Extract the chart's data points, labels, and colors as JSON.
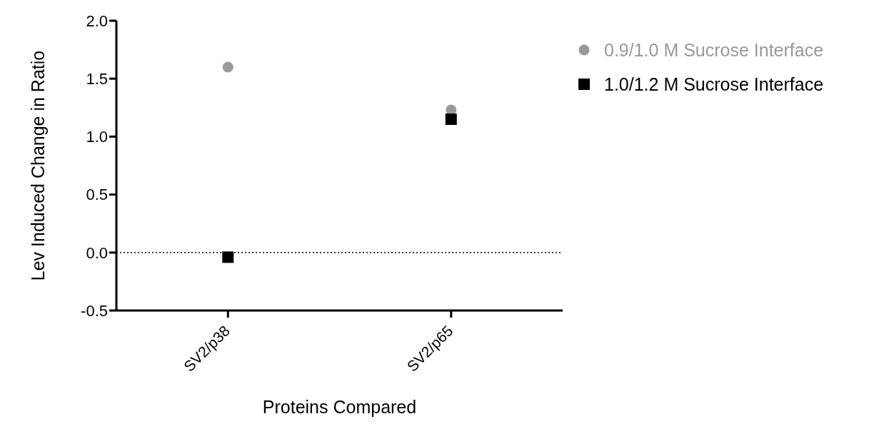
{
  "chart_data": {
    "type": "scatter",
    "xlabel": "Proteins Compared",
    "ylabel": "Lev Induced Change in Ratio",
    "categories": [
      "SV2/p38",
      "SV2/p65"
    ],
    "series": [
      {
        "name": "0.9/1.0 M Sucrose Interface",
        "color": "#999999",
        "marker": "circle",
        "values": [
          1.6,
          1.23
        ]
      },
      {
        "name": "1.0/1.2 M Sucrose Interface",
        "color": "#000000",
        "marker": "square",
        "values": [
          -0.04,
          1.15
        ]
      }
    ],
    "ylim": [
      -0.5,
      2.0
    ],
    "yticks": [
      {
        "value": -0.5,
        "label": "-0.5"
      },
      {
        "value": 0,
        "label": "0.0"
      },
      {
        "value": 0.5,
        "label": "0.5"
      },
      {
        "value": 1,
        "label": "1.0"
      },
      {
        "value": 1.5,
        "label": "1.5"
      },
      {
        "value": 2,
        "label": "2.0"
      }
    ],
    "ref_lines": [
      {
        "axis": "y",
        "value": 0,
        "line_style": "dotted",
        "color": "#000000"
      }
    ],
    "grid": false,
    "legend": "top right"
  }
}
